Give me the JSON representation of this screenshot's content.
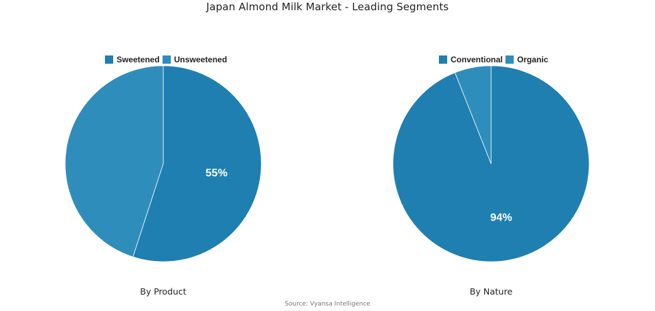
{
  "title": "Japan Almond Milk Market - Leading Segments",
  "source": "Source: Vyansa Intelligence",
  "colors": {
    "primary": "#1e7fb0",
    "secondary": "#2f8dbb"
  },
  "chart_data": [
    {
      "type": "pie",
      "caption": "By Product",
      "legend_position": "top",
      "slices": [
        {
          "label": "Sweetened",
          "value": 55,
          "color": "#1e7fb0",
          "data_label": "55%"
        },
        {
          "label": "Unsweetened",
          "value": 45,
          "color": "#2f8dbb",
          "data_label": ""
        }
      ]
    },
    {
      "type": "pie",
      "caption": "By Nature",
      "legend_position": "top",
      "slices": [
        {
          "label": "Conventional",
          "value": 94,
          "color": "#1e7fb0",
          "data_label": "94%"
        },
        {
          "label": "Organic",
          "value": 6,
          "color": "#2f8dbb",
          "data_label": ""
        }
      ]
    }
  ]
}
